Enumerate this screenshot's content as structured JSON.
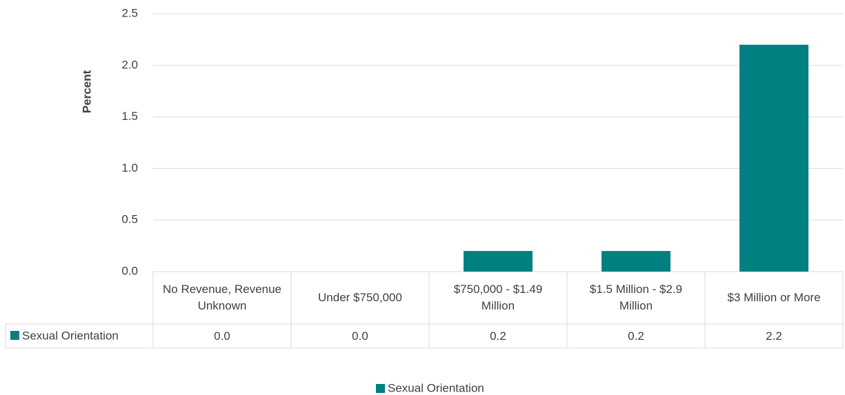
{
  "chart_data": {
    "type": "bar",
    "y_label": "Percent",
    "categories": [
      "No Revenue, Revenue Unknown",
      "Under $750,000",
      "$750,000 - $1.49 Million",
      "$1.5 Million - $2.9 Million",
      "$3 Million or More"
    ],
    "series": [
      {
        "name": "Sexual Orientation",
        "color": "#008080",
        "values": [
          0,
          0,
          0.2,
          0.2,
          2.2
        ],
        "value_labels": [
          "0.0",
          "0.0",
          "0.2",
          "0.2",
          "2.2"
        ]
      }
    ],
    "ylim": [
      0,
      2.5
    ],
    "yticks": [
      {
        "value": 0,
        "label": "0.0"
      },
      0.5,
      {
        "value": 1,
        "label": "1.0"
      },
      1.5,
      {
        "value": 2,
        "label": "2.0"
      },
      2.5
    ],
    "grid": true,
    "legend": "bottom"
  }
}
